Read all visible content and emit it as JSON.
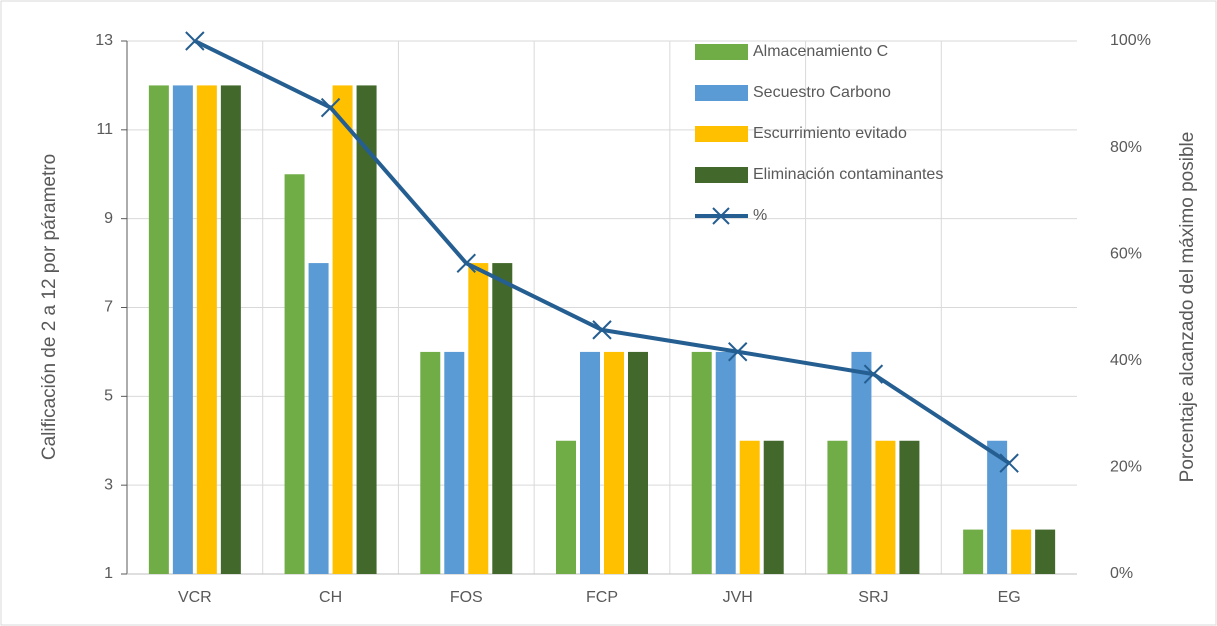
{
  "chart_data": {
    "type": "bar",
    "categories": [
      "VCR",
      "CH",
      "FOS",
      "FCP",
      "JVH",
      "SRJ",
      "EG"
    ],
    "series": [
      {
        "name": "Almacenamiento C",
        "color": "#70ad47",
        "values": [
          12,
          10,
          6,
          4,
          6,
          4,
          2
        ]
      },
      {
        "name": "Secuestro Carbono",
        "color": "#5b9bd5",
        "values": [
          12,
          8,
          6,
          6,
          6,
          6,
          4
        ]
      },
      {
        "name": "Escurrimiento evitado",
        "color": "#ffc000",
        "values": [
          12,
          12,
          8,
          6,
          4,
          4,
          2
        ]
      },
      {
        "name": "Eliminación contaminantes",
        "color": "#43682b",
        "values": [
          12,
          12,
          8,
          6,
          4,
          4,
          2
        ]
      },
      {
        "name": "%",
        "type": "line",
        "axis": "y2",
        "color": "#255e91",
        "values": [
          100,
          87.5,
          58.3,
          45.8,
          41.7,
          37.5,
          20.8
        ]
      }
    ],
    "ylabel": "Calificación de 2 a 12 por párametro",
    "y2label": "Porcentaje alcanzado del máximo posible",
    "ylim": [
      1,
      13
    ],
    "yticks": [
      1,
      3,
      5,
      7,
      9,
      11,
      13
    ],
    "y2lim": [
      0,
      100
    ],
    "y2ticks": [
      {
        "value": 0,
        "label": "0%"
      },
      {
        "value": 20,
        "label": "20%"
      },
      {
        "value": 40,
        "label": "40%"
      },
      {
        "value": 60,
        "label": "60%"
      },
      {
        "value": 80,
        "label": "80%"
      },
      {
        "value": 100,
        "label": "100%"
      }
    ],
    "grid": true,
    "legend": "top-right"
  }
}
